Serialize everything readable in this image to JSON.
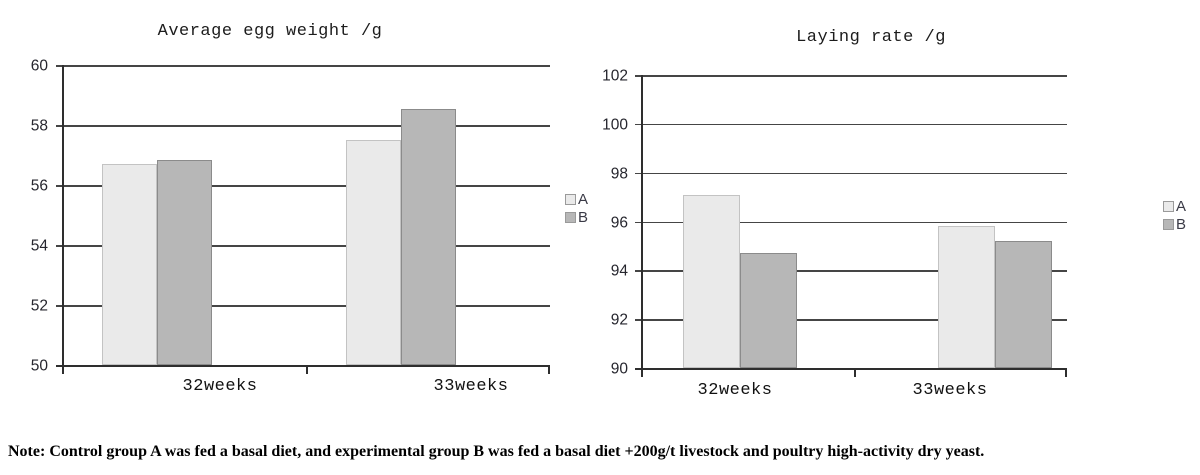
{
  "figure": {
    "note": "Note: Control group A was fed a basal diet, and experimental group B was fed a basal diet +200g/t livestock and poultry high-activity dry yeast."
  },
  "chart_data": [
    {
      "type": "bar",
      "title": "Average egg weight /g",
      "categories": [
        "32weeks",
        "33weeks"
      ],
      "series": [
        {
          "name": "A",
          "values": [
            56.7,
            57.5
          ],
          "fill": "#eaeaea",
          "border": "#c3c3c3"
        },
        {
          "name": "B",
          "values": [
            56.85,
            58.55
          ],
          "fill": "#b7b7b7",
          "border": "#8b8b8b"
        }
      ],
      "ylim": [
        50,
        60
      ],
      "ytick_step": 2,
      "ytick_labels": [
        "60",
        "58",
        "56",
        "54",
        "52",
        "50"
      ],
      "grid": true,
      "legend_position": "right",
      "legend_entries": [
        "A",
        "B"
      ]
    },
    {
      "type": "bar",
      "title": "Laying rate /g",
      "categories": [
        "32weeks",
        "33weeks"
      ],
      "series": [
        {
          "name": "A",
          "values": [
            97.1,
            95.8
          ],
          "fill": "#eaeaea",
          "border": "#c3c3c3"
        },
        {
          "name": "B",
          "values": [
            94.7,
            95.2
          ],
          "fill": "#b7b7b7",
          "border": "#8b8b8b"
        }
      ],
      "ylim": [
        90,
        102
      ],
      "ytick_step": 2,
      "ytick_labels": [
        "102",
        "100",
        "98",
        "96",
        "94",
        "92",
        "90"
      ],
      "grid": true,
      "legend_position": "right",
      "legend_entries": [
        "A",
        "B"
      ]
    }
  ]
}
